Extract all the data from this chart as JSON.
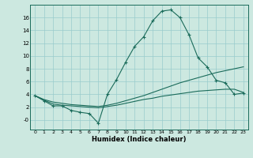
{
  "x": [
    0,
    1,
    2,
    3,
    4,
    5,
    6,
    7,
    8,
    9,
    10,
    11,
    12,
    13,
    14,
    15,
    16,
    17,
    18,
    19,
    20,
    21,
    22,
    23
  ],
  "humidex": [
    3.8,
    3.0,
    2.2,
    2.2,
    1.5,
    1.2,
    1.0,
    -0.5,
    4.0,
    6.3,
    9.0,
    11.5,
    13.0,
    15.5,
    17.0,
    17.2,
    16.0,
    13.3,
    9.7,
    8.3,
    6.2,
    5.8,
    4.0,
    4.2
  ],
  "line2": [
    3.8,
    3.2,
    2.8,
    2.6,
    2.4,
    2.3,
    2.2,
    2.1,
    2.3,
    2.6,
    3.0,
    3.4,
    3.8,
    4.3,
    4.8,
    5.3,
    5.8,
    6.2,
    6.6,
    7.0,
    7.4,
    7.7,
    8.0,
    8.3
  ],
  "line3": [
    3.8,
    3.1,
    2.5,
    2.3,
    2.2,
    2.1,
    2.0,
    1.9,
    2.1,
    2.3,
    2.6,
    2.9,
    3.2,
    3.4,
    3.7,
    3.9,
    4.1,
    4.3,
    4.5,
    4.6,
    4.7,
    4.8,
    4.8,
    4.3
  ],
  "bg_color": "#cce8e0",
  "grid_color": "#99cccc",
  "line_color": "#1a6b5a",
  "xlabel": "Humidex (Indice chaleur)",
  "ylim": [
    -1.5,
    18.0
  ],
  "xlim": [
    -0.5,
    23.5
  ],
  "yticks": [
    0,
    2,
    4,
    6,
    8,
    10,
    12,
    14,
    16
  ],
  "ytick_labels": [
    "-0",
    "2",
    "4",
    "6",
    "8",
    "10",
    "12",
    "14",
    "16"
  ],
  "xtick_labels": [
    "0",
    "1",
    "2",
    "3",
    "4",
    "5",
    "6",
    "7",
    "8",
    "9",
    "10",
    "11",
    "12",
    "13",
    "14",
    "15",
    "16",
    "17",
    "18",
    "19",
    "20",
    "21",
    "22",
    "23"
  ]
}
